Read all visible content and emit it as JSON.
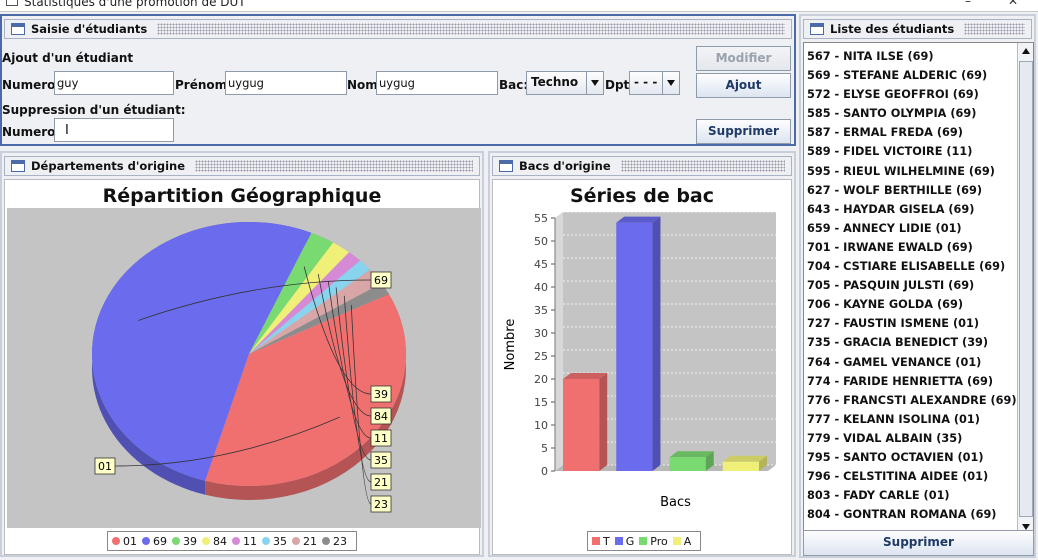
{
  "window": {
    "title": "Statistiques d'une promotion de DUT",
    "minimize": "–",
    "close": "✕"
  },
  "saisie": {
    "title": "Saisie d'étudiants",
    "ajout_label": "Ajout d'un étudiant",
    "numero_label": "Numero:",
    "numero_value": "guy",
    "prenom_label": "Prénom:",
    "prenom_value": "uygug",
    "nom_label": "Nom:",
    "nom_value": "uygug",
    "bac_label": "Bac:",
    "bac_value": "Techno",
    "dpt_label": "Dpt:",
    "dpt_value": "- - -",
    "suppression_label": "Suppression d'un étudiant:",
    "suppr_numero_label": "Numero:",
    "suppr_numero_value": "",
    "modifier_button": "Modifier",
    "ajout_button": "Ajout",
    "supprimer_button": "Supprimer"
  },
  "departements": {
    "frame_title": "Départements d'origine",
    "chart_title": "Répartition Géographique"
  },
  "bacs": {
    "frame_title": "Bacs d'origine",
    "chart_title": "Séries de bac"
  },
  "liste": {
    "title": "Liste des étudiants",
    "supprimer_button": "Supprimer",
    "items": [
      "567 - NITA ILSE (69)",
      "569 - STEFANE ALDERIC (69)",
      "572 - ELYSE GEOFFROI (69)",
      "585 - SANTO OLYMPIA (69)",
      "587 - ERMAL FREDA (69)",
      "589 - FIDEL VICTOIRE (11)",
      "595 - RIEUL WILHELMINE (69)",
      "627 - WOLF BERTHILLE (69)",
      "643 - HAYDAR GISELA (69)",
      "659 - ANNECY LIDIE (01)",
      "701 - IRWANE EWALD (69)",
      "704 - CSTIARE ELISABELLE (69)",
      "705 - PASQUIN JULSTI (69)",
      "706 - KAYNE GOLDA (69)",
      "727 - FAUSTIN ISMENE (01)",
      "735 - GRACIA BENEDICT (39)",
      "764 - GAMEL VENANCE (01)",
      "774 - FARIDE HENRIETTA (69)",
      "776 - FRANCSTI ALEXANDRE (69)",
      "777 - KELANN ISOLINA (01)",
      "779 - VIDAL ALBAIN (35)",
      "795 - SANTO OCTAVIEN (01)",
      "796 - CELSTITINA AIDEE (01)",
      "803 - FADY CARLE (01)",
      "804 - GONTRAN ROMANA (69)"
    ]
  },
  "chart_data": [
    {
      "type": "pie",
      "title": "Répartition Géographique",
      "categories": [
        "01",
        "69",
        "39",
        "84",
        "11",
        "35",
        "21",
        "23"
      ],
      "values": [
        37,
        52,
        2.5,
        2,
        1.5,
        1.5,
        2,
        1.5
      ],
      "colors": [
        "#f07070",
        "#6b6bee",
        "#7ada72",
        "#f0f078",
        "#d68ad6",
        "#88d4ee",
        "#d8a6a6",
        "#8c8c8c"
      ]
    },
    {
      "type": "bar",
      "title": "Séries de bac",
      "xlabel": "Bacs",
      "ylabel": "Nombre",
      "categories": [
        "T",
        "G",
        "Pro",
        "A"
      ],
      "values": [
        20,
        54,
        3,
        2
      ],
      "colors": [
        "#f07070",
        "#6b6bee",
        "#7ada72",
        "#f0f078"
      ],
      "ylim": [
        0,
        55
      ],
      "yticks": [
        0,
        5,
        10,
        15,
        20,
        25,
        30,
        35,
        40,
        45,
        50,
        55
      ]
    }
  ]
}
